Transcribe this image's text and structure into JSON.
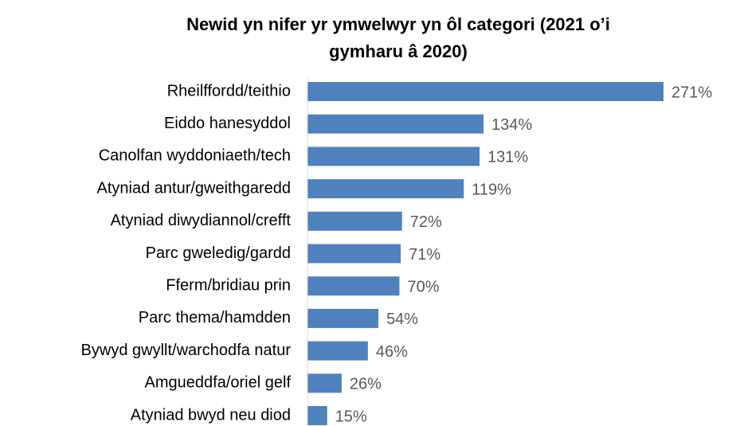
{
  "chart_data": {
    "type": "bar",
    "orientation": "horizontal",
    "title": "Newid yn nifer yr ymwelwyr yn ôl categori (2021 o’i gymharu â 2020)",
    "categories": [
      "Rheilffordd/teithio",
      "Eiddo hanesyddol",
      "Canolfan wyddoniaeth/tech",
      "Atyniad antur/gweithgaredd",
      "Atyniad diwydiannol/crefft",
      "Parc gweledig/gardd",
      "Fferm/bridiau prin",
      "Parc thema/hamdden",
      "Bywyd gwyllt/warchodfa natur",
      "Amgueddfa/oriel gelf",
      "Atyniad bwyd neu diod"
    ],
    "values": [
      271,
      134,
      131,
      119,
      72,
      71,
      70,
      54,
      46,
      26,
      15
    ],
    "value_labels": [
      "271%",
      "134%",
      "131%",
      "119%",
      "72%",
      "71%",
      "70%",
      "54%",
      "46%",
      "26%",
      "15%"
    ],
    "color": "#4f81bd"
  }
}
